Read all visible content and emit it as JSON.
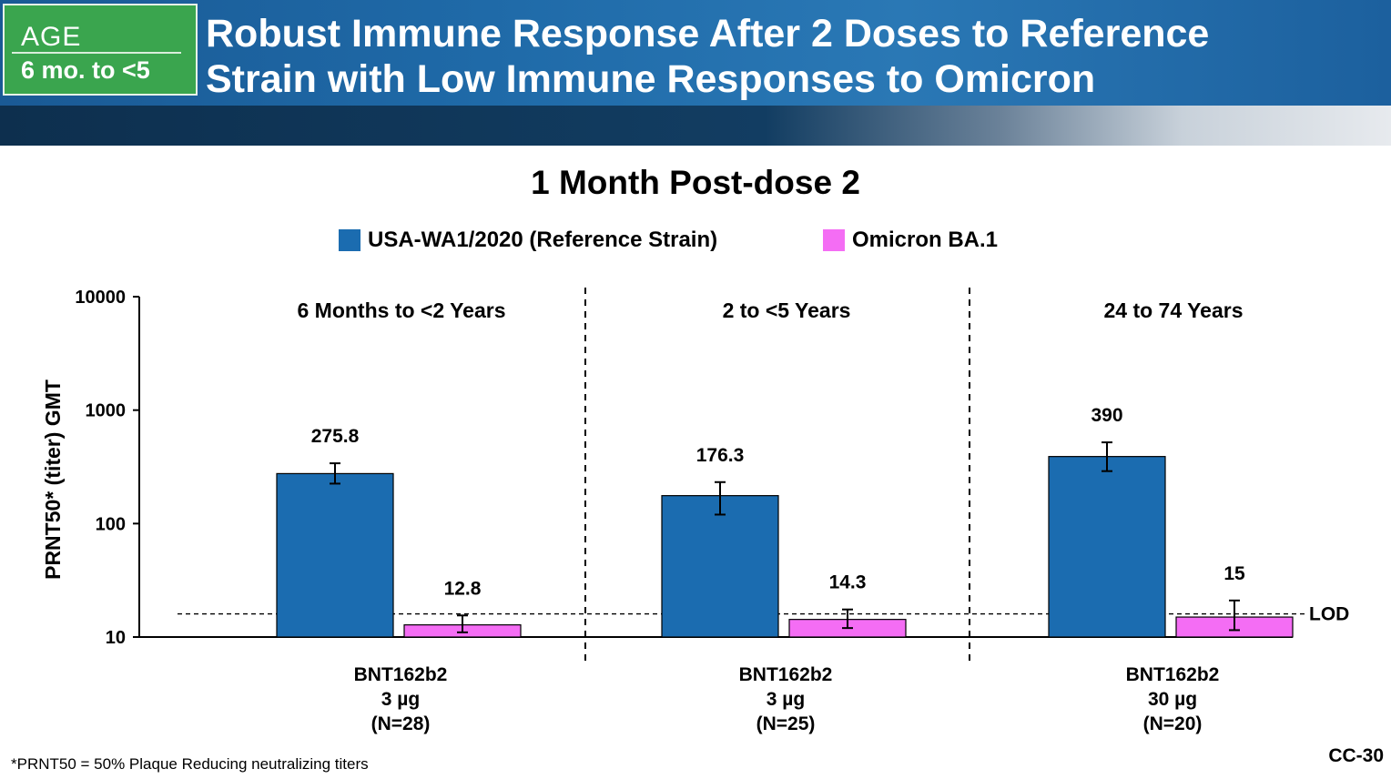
{
  "header": {
    "age_label": "AGE",
    "age_value": "6 mo. to <5",
    "title_line1": "Robust Immune Response After 2 Doses to Reference",
    "title_line2": "Strain with Low Immune Responses to Omicron"
  },
  "colors": {
    "reference": "#1b6cb0",
    "omicron": "#f46df4",
    "header_blue": "#1f6aa8",
    "age_green": "#3aa54e"
  },
  "footnote": "*PRNT50 = 50% Plaque Reducing neutralizing titers",
  "slide_id": "CC-30",
  "chart_data": {
    "type": "bar",
    "title": "1 Month Post-dose 2",
    "ylabel": "PRNT50* (titer) GMT",
    "yscale": "log",
    "ylim": [
      10,
      10000
    ],
    "yticks": [
      "10",
      "100",
      "1000",
      "10000"
    ],
    "ytick_values": [
      10,
      100,
      1000,
      10000
    ],
    "legend": [
      {
        "name": "USA-WA1/2020 (Reference Strain)",
        "color": "#1b6cb0"
      },
      {
        "name": "Omicron BA.1",
        "color": "#f46df4"
      }
    ],
    "lod": {
      "label": "LOD",
      "value": 16
    },
    "groups": [
      {
        "title": "6 Months to <2 Years",
        "xlabel": [
          "BNT162b2",
          "3 µg",
          "(N=28)"
        ],
        "bars": [
          {
            "series": "USA-WA1/2020 (Reference Strain)",
            "value": 275.8,
            "label": "275.8",
            "ci": [
              225,
              340
            ]
          },
          {
            "series": "Omicron BA.1",
            "value": 12.8,
            "label": "12.8",
            "ci": [
              11,
              15.5
            ]
          }
        ]
      },
      {
        "title": "2 to <5 Years",
        "xlabel": [
          "BNT162b2",
          "3 µg",
          "(N=25)"
        ],
        "bars": [
          {
            "series": "USA-WA1/2020 (Reference Strain)",
            "value": 176.3,
            "label": "176.3",
            "ci": [
              120,
              232
            ]
          },
          {
            "series": "Omicron BA.1",
            "value": 14.3,
            "label": "14.3",
            "ci": [
              12,
              17.5
            ]
          }
        ]
      },
      {
        "title": "24 to 74 Years",
        "xlabel": [
          "BNT162b2",
          "30 µg",
          "(N=20)"
        ],
        "bars": [
          {
            "series": "USA-WA1/2020 (Reference Strain)",
            "value": 390,
            "label": "390",
            "ci": [
              290,
              520
            ]
          },
          {
            "series": "Omicron BA.1",
            "value": 15,
            "label": "15",
            "ci": [
              11.5,
              21
            ]
          }
        ]
      }
    ]
  }
}
